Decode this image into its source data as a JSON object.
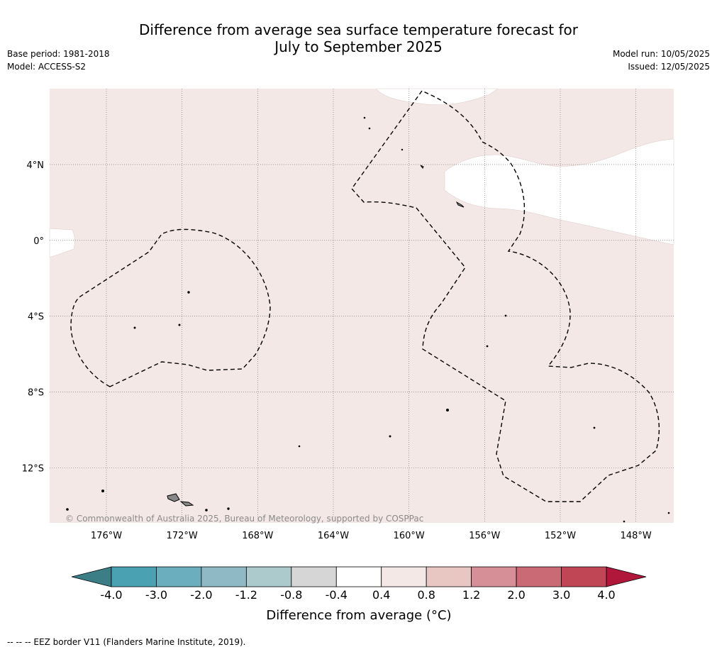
{
  "title_line1": "Difference from average sea surface temperature forecast for",
  "title_line2": "July to September 2025",
  "base_period": "Base period: 1981-2018",
  "model": "Model: ACCESS-S2",
  "model_run": "Model run: 10/05/2025",
  "issued": "Issued: 12/05/2025",
  "copyright": "© Commonwealth of Australia 2025, Bureau of Meteorology, supported by COSPPac",
  "footer": "--  --  -- EEZ border V11 (Flanders Marine Institute, 2019).",
  "colorbar_label": "Difference from average (°C)",
  "colors": {
    "anomaly_0_4_to_0_8": "#f4e8e6",
    "neutral": "#ffffff",
    "coast": "#000000",
    "land": "#888888"
  },
  "chart_data": {
    "type": "heatmap",
    "variable": "Difference from average sea surface temperature (°C)",
    "x_axis": {
      "ticks": [
        -176,
        -172,
        -168,
        -164,
        -160,
        -156,
        -152,
        -148
      ],
      "tick_labels": [
        "176°W",
        "172°W",
        "168°W",
        "164°W",
        "160°W",
        "156°W",
        "152°W",
        "148°W"
      ],
      "range": [
        -179,
        -146
      ]
    },
    "y_axis": {
      "ticks": [
        4,
        0,
        -4,
        -8,
        -12
      ],
      "tick_labels": [
        "4°N",
        "0°",
        "4°S",
        "8°S",
        "12°S"
      ],
      "range": [
        -14.9,
        8
      ]
    },
    "grid": true,
    "field_summary": [
      {
        "category": "0.4 to 0.8",
        "extent": "most of the domain"
      },
      {
        "category": "-0.4 to 0.4",
        "extent": "equatorial tongue east of 158°W near 1-4°N, small patch near 0° at 179°W, and north edge near 160°W"
      }
    ],
    "colorbar": {
      "boundaries": [
        -4.0,
        -3.0,
        -2.0,
        -1.2,
        -0.8,
        -0.4,
        0.4,
        0.8,
        1.2,
        2.0,
        3.0,
        4.0
      ],
      "tick_labels": [
        "-4.0",
        "-3.0",
        "-2.0",
        "-1.2",
        "-0.8",
        "-0.4",
        "0.4",
        "0.8",
        "1.2",
        "2.0",
        "3.0",
        "4.0"
      ],
      "colors": [
        "#4aa1b1",
        "#6baebd",
        "#8fbac5",
        "#acc9cc",
        "#d6d6d6",
        "#ffffff",
        "#f4e8e6",
        "#e8c6c1",
        "#d68f96",
        "#c96a74",
        "#c04656"
      ],
      "under_color": "#3b7e86",
      "over_color": "#b0173a",
      "extend": "both"
    }
  }
}
